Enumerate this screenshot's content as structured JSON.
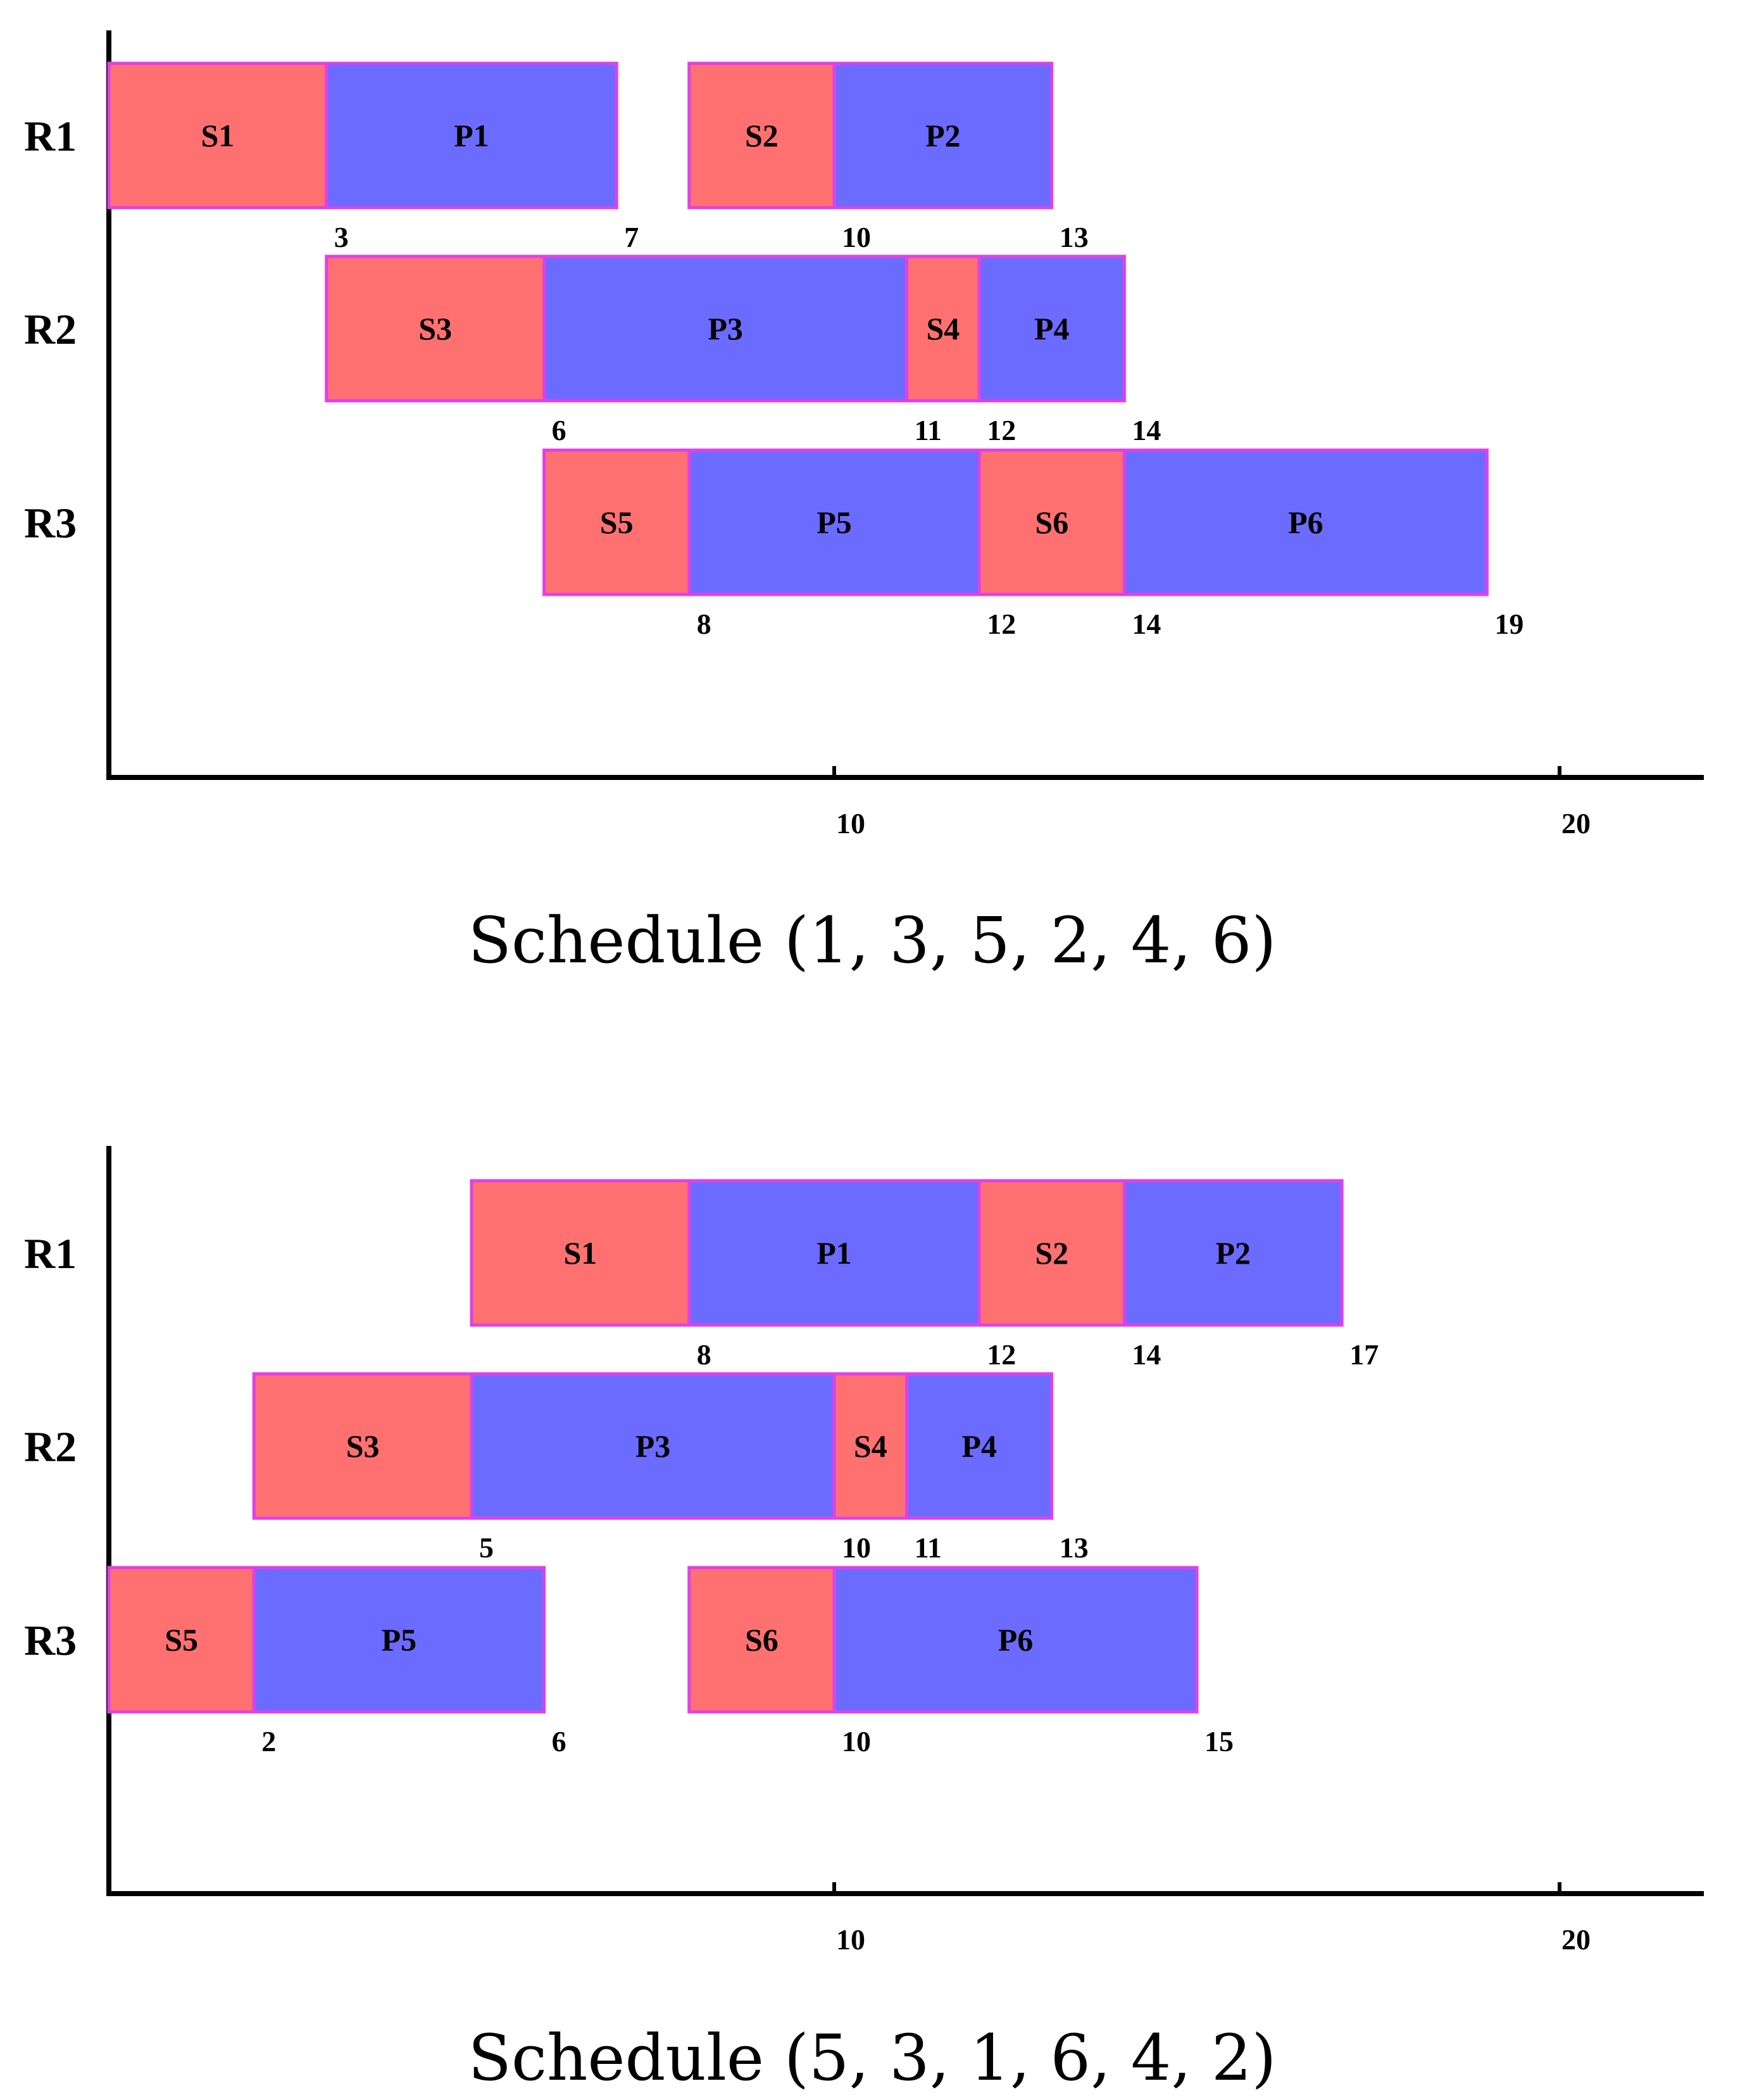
{
  "chart_data": [
    {
      "type": "gantt",
      "title": "Schedule (1, 3, 5, 2, 4, 6)",
      "rows": [
        "R1",
        "R2",
        "R3"
      ],
      "x_ticks": [
        10,
        20
      ],
      "xlim": [
        0,
        22
      ],
      "colors": {
        "setup": "#ff7070",
        "process": "#6b6bff",
        "border": "#e040e8"
      },
      "tasks": [
        {
          "row": "R1",
          "label": "S1",
          "kind": "setup",
          "start": 0,
          "end": 3
        },
        {
          "row": "R1",
          "label": "P1",
          "kind": "process",
          "start": 3,
          "end": 7
        },
        {
          "row": "R1",
          "label": "S2",
          "kind": "setup",
          "start": 8,
          "end": 10
        },
        {
          "row": "R1",
          "label": "P2",
          "kind": "process",
          "start": 10,
          "end": 13
        },
        {
          "row": "R2",
          "label": "S3",
          "kind": "setup",
          "start": 3,
          "end": 6
        },
        {
          "row": "R2",
          "label": "P3",
          "kind": "process",
          "start": 6,
          "end": 11
        },
        {
          "row": "R2",
          "label": "S4",
          "kind": "setup",
          "start": 11,
          "end": 12
        },
        {
          "row": "R2",
          "label": "P4",
          "kind": "process",
          "start": 12,
          "end": 14
        },
        {
          "row": "R3",
          "label": "S5",
          "kind": "setup",
          "start": 6,
          "end": 8
        },
        {
          "row": "R3",
          "label": "P5",
          "kind": "process",
          "start": 8,
          "end": 12
        },
        {
          "row": "R3",
          "label": "S6",
          "kind": "setup",
          "start": 12,
          "end": 14
        },
        {
          "row": "R3",
          "label": "P6",
          "kind": "process",
          "start": 14,
          "end": 19
        }
      ],
      "time_marks": [
        {
          "row": "R1",
          "values": [
            3,
            7,
            10,
            13
          ]
        },
        {
          "row": "R2",
          "values": [
            6,
            11,
            12,
            14
          ]
        },
        {
          "row": "R3",
          "values": [
            8,
            12,
            14,
            19
          ]
        }
      ]
    },
    {
      "type": "gantt",
      "title": "Schedule (5, 3, 1, 6, 4, 2)",
      "rows": [
        "R1",
        "R2",
        "R3"
      ],
      "x_ticks": [
        10,
        20
      ],
      "xlim": [
        0,
        22
      ],
      "colors": {
        "setup": "#ff7070",
        "process": "#6b6bff",
        "border": "#e040e8"
      },
      "tasks": [
        {
          "row": "R1",
          "label": "S1",
          "kind": "setup",
          "start": 5,
          "end": 8
        },
        {
          "row": "R1",
          "label": "P1",
          "kind": "process",
          "start": 8,
          "end": 12
        },
        {
          "row": "R1",
          "label": "S2",
          "kind": "setup",
          "start": 12,
          "end": 14
        },
        {
          "row": "R1",
          "label": "P2",
          "kind": "process",
          "start": 14,
          "end": 17
        },
        {
          "row": "R2",
          "label": "S3",
          "kind": "setup",
          "start": 2,
          "end": 5
        },
        {
          "row": "R2",
          "label": "P3",
          "kind": "process",
          "start": 5,
          "end": 10
        },
        {
          "row": "R2",
          "label": "S4",
          "kind": "setup",
          "start": 10,
          "end": 11
        },
        {
          "row": "R2",
          "label": "P4",
          "kind": "process",
          "start": 11,
          "end": 13
        },
        {
          "row": "R3",
          "label": "S5",
          "kind": "setup",
          "start": 0,
          "end": 2
        },
        {
          "row": "R3",
          "label": "P5",
          "kind": "process",
          "start": 2,
          "end": 6
        },
        {
          "row": "R3",
          "label": "S6",
          "kind": "setup",
          "start": 8,
          "end": 10
        },
        {
          "row": "R3",
          "label": "P6",
          "kind": "process",
          "start": 10,
          "end": 15
        }
      ],
      "time_marks": [
        {
          "row": "R1",
          "values": [
            8,
            12,
            14,
            17
          ]
        },
        {
          "row": "R2",
          "values": [
            5,
            10,
            11,
            13
          ]
        },
        {
          "row": "R3",
          "values": [
            2,
            6,
            10,
            15
          ]
        }
      ]
    }
  ]
}
